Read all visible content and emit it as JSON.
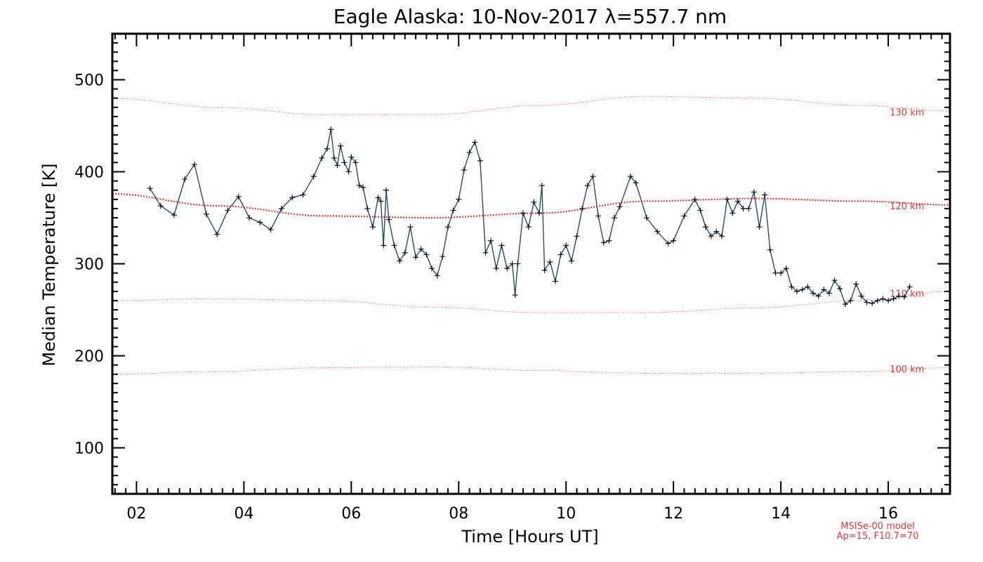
{
  "chart_data": {
    "type": "line",
    "title": "Eagle Alaska: 10-Nov-2017 λ=557.7 nm",
    "xlabel": "Time [Hours UT]",
    "ylabel": "Median Temperature [K]",
    "xlim": [
      1.55,
      17.15
    ],
    "ylim": [
      50,
      550
    ],
    "x_ticks": [
      2,
      4,
      6,
      8,
      10,
      12,
      14,
      16
    ],
    "x_tick_labels": [
      "02",
      "04",
      "06",
      "08",
      "10",
      "12",
      "14",
      "16"
    ],
    "y_ticks": [
      100,
      200,
      300,
      400,
      500
    ],
    "y_tick_labels": [
      "100",
      "200",
      "300",
      "400",
      "500"
    ],
    "grid": false,
    "colors": {
      "data_line": "#1f4e6e",
      "data_marker": "#000000",
      "model": "#e8343c",
      "axes": "#000000",
      "background": "#ffffff"
    },
    "series": [
      {
        "x": [
          2.25,
          2.45,
          2.7,
          2.9,
          3.08,
          3.3,
          3.5,
          3.7,
          3.9,
          4.1,
          4.3,
          4.5,
          4.7,
          4.9,
          5.1,
          5.3,
          5.45,
          5.55,
          5.62,
          5.68,
          5.74,
          5.8,
          5.87,
          5.95,
          6.0,
          6.08,
          6.15,
          6.22,
          6.3,
          6.4,
          6.5,
          6.55,
          6.6,
          6.65,
          6.7,
          6.8,
          6.9,
          7.0,
          7.1,
          7.2,
          7.3,
          7.4,
          7.5,
          7.6,
          7.7,
          7.8,
          7.9,
          8.0,
          8.1,
          8.2,
          8.3,
          8.4,
          8.5,
          8.6,
          8.7,
          8.8,
          8.9,
          9.0,
          9.05,
          9.1,
          9.2,
          9.3,
          9.4,
          9.5,
          9.55,
          9.6,
          9.7,
          9.8,
          9.9,
          10.0,
          10.1,
          10.2,
          10.3,
          10.4,
          10.5,
          10.6,
          10.7,
          10.8,
          10.9,
          11.0,
          11.2,
          11.3,
          11.5,
          11.7,
          11.9,
          12.0,
          12.2,
          12.4,
          12.5,
          12.6,
          12.7,
          12.8,
          12.9,
          13.0,
          13.1,
          13.2,
          13.3,
          13.4,
          13.5,
          13.6,
          13.7,
          13.8,
          13.9,
          14.0,
          14.1,
          14.2,
          14.3,
          14.4,
          14.5,
          14.6,
          14.7,
          14.8,
          14.9,
          15.0,
          15.1,
          15.2,
          15.3,
          15.4,
          15.5,
          15.6,
          15.7,
          15.8,
          15.9,
          16.0,
          16.1,
          16.2,
          16.3,
          16.4
        ],
        "values": [
          382,
          363,
          353,
          392,
          408,
          354,
          332,
          358,
          373,
          350,
          345,
          337,
          360,
          372,
          375,
          395,
          415,
          425,
          446,
          415,
          407,
          428,
          410,
          400,
          416,
          410,
          385,
          383,
          360,
          340,
          372,
          368,
          320,
          380,
          348,
          320,
          303,
          312,
          340,
          307,
          316,
          310,
          295,
          287,
          308,
          340,
          358,
          370,
          402,
          421,
          432,
          412,
          312,
          325,
          295,
          320,
          295,
          300,
          266,
          300,
          355,
          340,
          367,
          355,
          385,
          293,
          302,
          281,
          310,
          320,
          303,
          330,
          360,
          385,
          395,
          352,
          323,
          325,
          350,
          362,
          395,
          388,
          350,
          335,
          322,
          325,
          352,
          370,
          358,
          340,
          330,
          335,
          330,
          370,
          355,
          368,
          360,
          360,
          378,
          340,
          375,
          315,
          290,
          290,
          295,
          275,
          270,
          272,
          275,
          268,
          265,
          272,
          268,
          282,
          273,
          256,
          260,
          278,
          265,
          258,
          257,
          260,
          262,
          260,
          262,
          265,
          264,
          275
        ]
      }
    ],
    "model_curves": [
      {
        "name": "130 km",
        "style": "thin",
        "x": [
          1.55,
          3.5,
          5.5,
          7.5,
          9.5,
          11.5,
          13.5,
          15.5,
          17.15
        ],
        "values": [
          480,
          470,
          462,
          462,
          472,
          482,
          480,
          472,
          466
        ]
      },
      {
        "name": "120 km",
        "style": "thick",
        "x": [
          1.55,
          3.5,
          5.5,
          7.5,
          9.5,
          11.5,
          13.5,
          15.5,
          17.15
        ],
        "values": [
          376,
          363,
          352,
          350,
          355,
          368,
          371,
          368,
          364
        ]
      },
      {
        "name": "110 km",
        "style": "thin",
        "x": [
          1.55,
          3.5,
          5.5,
          7.5,
          9.5,
          11.5,
          13.5,
          15.5,
          17.15
        ],
        "values": [
          260,
          262,
          260,
          253,
          247,
          247,
          252,
          260,
          270
        ]
      },
      {
        "name": "100 km",
        "style": "thin",
        "x": [
          1.55,
          3.5,
          5.5,
          7.5,
          9.5,
          11.5,
          13.5,
          15.5,
          17.15
        ],
        "values": [
          180,
          183,
          187,
          188,
          184,
          181,
          181,
          183,
          187
        ]
      }
    ],
    "model_labels": [
      {
        "text": "130 km",
        "x": 16.35,
        "y": 465
      },
      {
        "text": "120 km",
        "x": 16.35,
        "y": 363
      },
      {
        "text": "110 km",
        "x": 16.35,
        "y": 268
      },
      {
        "text": "100 km",
        "x": 16.35,
        "y": 186
      }
    ],
    "annotation": {
      "line1": "MSISe-00 model",
      "line2": "Ap=15, F10.7=70"
    }
  }
}
